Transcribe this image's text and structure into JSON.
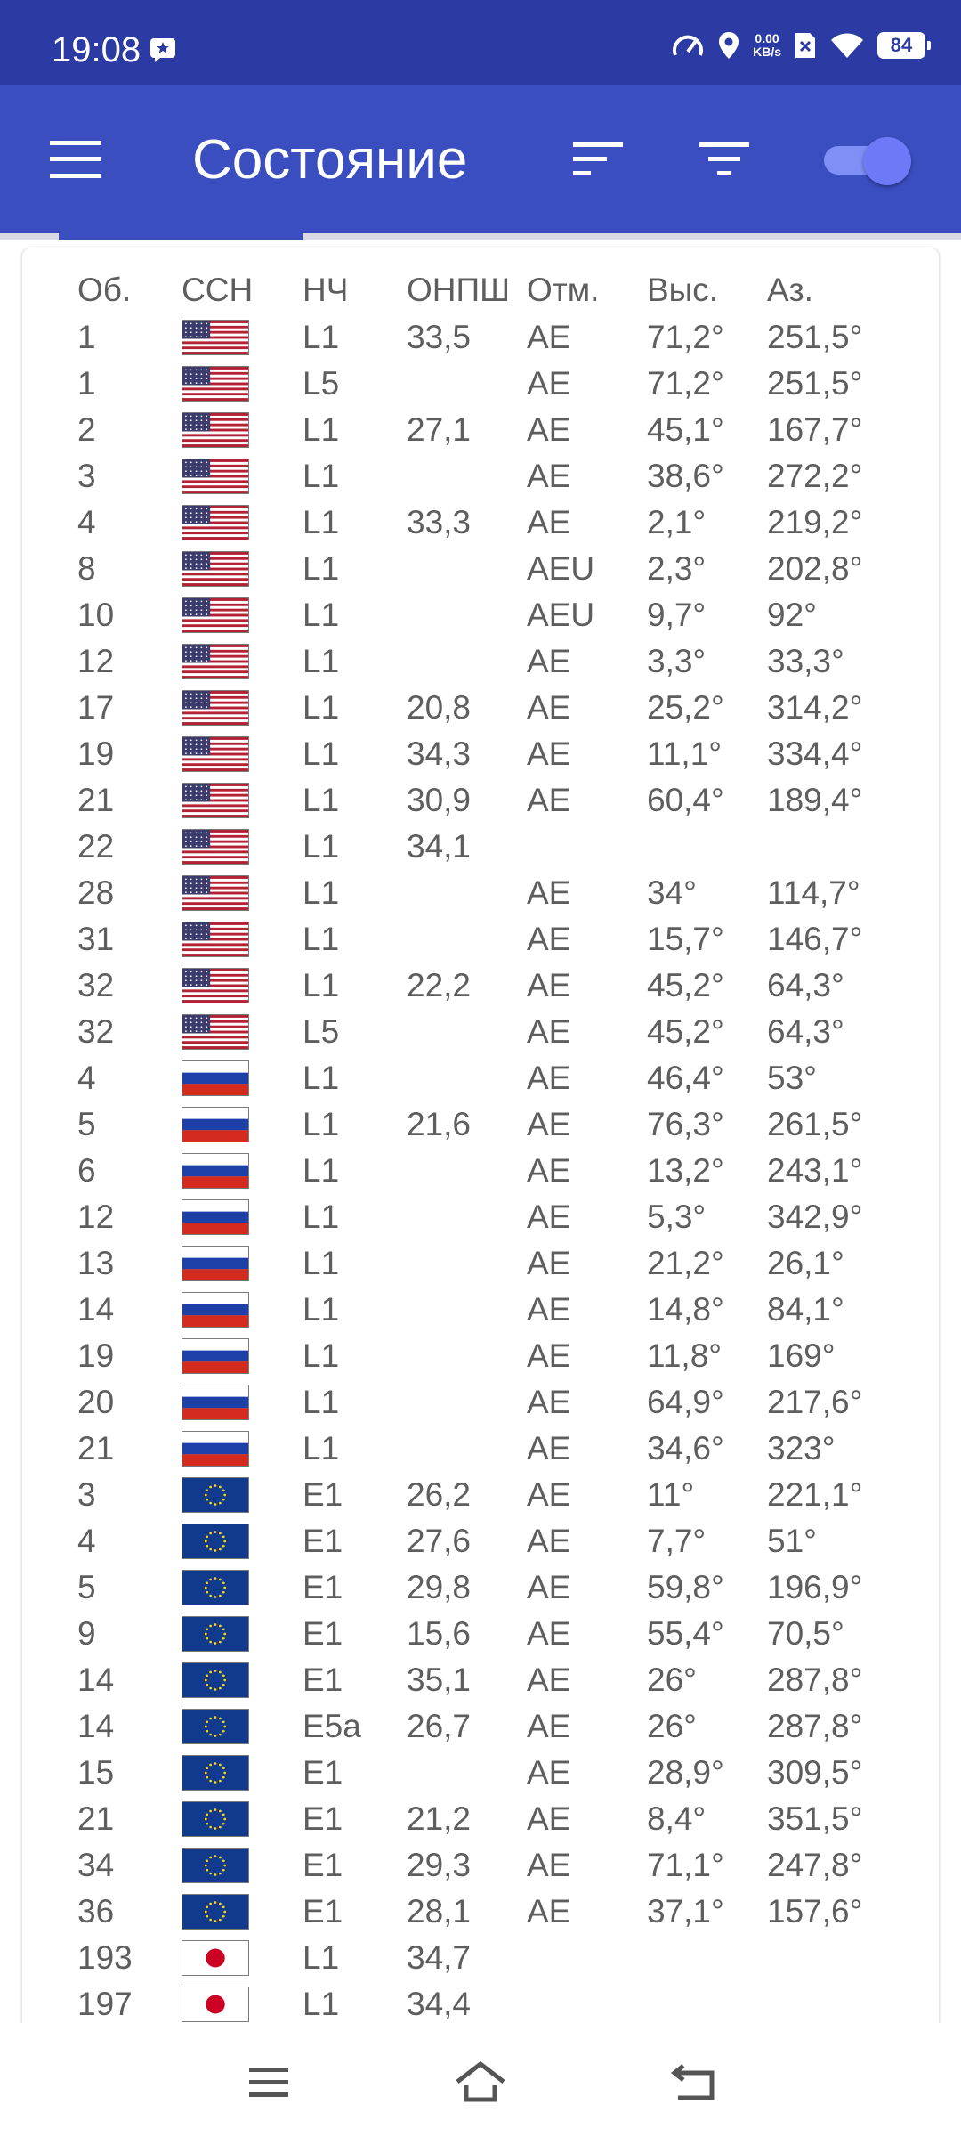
{
  "status_bar": {
    "time": "19:08",
    "net_speed_value": "0.00",
    "net_speed_unit": "KB/s",
    "battery": "84"
  },
  "app_bar": {
    "title": "Состояние",
    "color": "#3a4ec0",
    "toggle_on": true
  },
  "table": {
    "headers": [
      "Об.",
      "ССН",
      "НЧ",
      "ОНПШ",
      "Отм.",
      "Выс.",
      "Аз."
    ],
    "rows": [
      {
        "id": "1",
        "flag": "us",
        "band": "L1",
        "cn0": "33,5",
        "flags": "AE",
        "elev": "71,2°",
        "az": "251,5°"
      },
      {
        "id": "1",
        "flag": "us",
        "band": "L5",
        "cn0": "",
        "flags": "AE",
        "elev": "71,2°",
        "az": "251,5°"
      },
      {
        "id": "2",
        "flag": "us",
        "band": "L1",
        "cn0": "27,1",
        "flags": "AE",
        "elev": "45,1°",
        "az": "167,7°"
      },
      {
        "id": "3",
        "flag": "us",
        "band": "L1",
        "cn0": "",
        "flags": "AE",
        "elev": "38,6°",
        "az": "272,2°"
      },
      {
        "id": "4",
        "flag": "us",
        "band": "L1",
        "cn0": "33,3",
        "flags": "AE",
        "elev": "2,1°",
        "az": "219,2°"
      },
      {
        "id": "8",
        "flag": "us",
        "band": "L1",
        "cn0": "",
        "flags": "AEU",
        "elev": "2,3°",
        "az": "202,8°"
      },
      {
        "id": "10",
        "flag": "us",
        "band": "L1",
        "cn0": "",
        "flags": "AEU",
        "elev": "9,7°",
        "az": "92°"
      },
      {
        "id": "12",
        "flag": "us",
        "band": "L1",
        "cn0": "",
        "flags": "AE",
        "elev": "3,3°",
        "az": "33,3°"
      },
      {
        "id": "17",
        "flag": "us",
        "band": "L1",
        "cn0": "20,8",
        "flags": "AE",
        "elev": "25,2°",
        "az": "314,2°"
      },
      {
        "id": "19",
        "flag": "us",
        "band": "L1",
        "cn0": "34,3",
        "flags": "AE",
        "elev": "11,1°",
        "az": "334,4°"
      },
      {
        "id": "21",
        "flag": "us",
        "band": "L1",
        "cn0": "30,9",
        "flags": "AE",
        "elev": "60,4°",
        "az": "189,4°"
      },
      {
        "id": "22",
        "flag": "us",
        "band": "L1",
        "cn0": "34,1",
        "flags": "",
        "elev": "",
        "az": ""
      },
      {
        "id": "28",
        "flag": "us",
        "band": "L1",
        "cn0": "",
        "flags": "AE",
        "elev": "34°",
        "az": "114,7°"
      },
      {
        "id": "31",
        "flag": "us",
        "band": "L1",
        "cn0": "",
        "flags": "AE",
        "elev": "15,7°",
        "az": "146,7°"
      },
      {
        "id": "32",
        "flag": "us",
        "band": "L1",
        "cn0": "22,2",
        "flags": "AE",
        "elev": "45,2°",
        "az": "64,3°"
      },
      {
        "id": "32",
        "flag": "us",
        "band": "L5",
        "cn0": "",
        "flags": "AE",
        "elev": "45,2°",
        "az": "64,3°"
      },
      {
        "id": "4",
        "flag": "ru",
        "band": "L1",
        "cn0": "",
        "flags": "AE",
        "elev": "46,4°",
        "az": "53°"
      },
      {
        "id": "5",
        "flag": "ru",
        "band": "L1",
        "cn0": "21,6",
        "flags": "AE",
        "elev": "76,3°",
        "az": "261,5°"
      },
      {
        "id": "6",
        "flag": "ru",
        "band": "L1",
        "cn0": "",
        "flags": "AE",
        "elev": "13,2°",
        "az": "243,1°"
      },
      {
        "id": "12",
        "flag": "ru",
        "band": "L1",
        "cn0": "",
        "flags": "AE",
        "elev": "5,3°",
        "az": "342,9°"
      },
      {
        "id": "13",
        "flag": "ru",
        "band": "L1",
        "cn0": "",
        "flags": "AE",
        "elev": "21,2°",
        "az": "26,1°"
      },
      {
        "id": "14",
        "flag": "ru",
        "band": "L1",
        "cn0": "",
        "flags": "AE",
        "elev": "14,8°",
        "az": "84,1°"
      },
      {
        "id": "19",
        "flag": "ru",
        "band": "L1",
        "cn0": "",
        "flags": "AE",
        "elev": "11,8°",
        "az": "169°"
      },
      {
        "id": "20",
        "flag": "ru",
        "band": "L1",
        "cn0": "",
        "flags": "AE",
        "elev": "64,9°",
        "az": "217,6°"
      },
      {
        "id": "21",
        "flag": "ru",
        "band": "L1",
        "cn0": "",
        "flags": "AE",
        "elev": "34,6°",
        "az": "323°"
      },
      {
        "id": "3",
        "flag": "eu",
        "band": "E1",
        "cn0": "26,2",
        "flags": "AE",
        "elev": "11°",
        "az": "221,1°"
      },
      {
        "id": "4",
        "flag": "eu",
        "band": "E1",
        "cn0": "27,6",
        "flags": "AE",
        "elev": "7,7°",
        "az": "51°"
      },
      {
        "id": "5",
        "flag": "eu",
        "band": "E1",
        "cn0": "29,8",
        "flags": "AE",
        "elev": "59,8°",
        "az": "196,9°"
      },
      {
        "id": "9",
        "flag": "eu",
        "band": "E1",
        "cn0": "15,6",
        "flags": "AE",
        "elev": "55,4°",
        "az": "70,5°"
      },
      {
        "id": "14",
        "flag": "eu",
        "band": "E1",
        "cn0": "35,1",
        "flags": "AE",
        "elev": "26°",
        "az": "287,8°"
      },
      {
        "id": "14",
        "flag": "eu",
        "band": "E5a",
        "cn0": "26,7",
        "flags": "AE",
        "elev": "26°",
        "az": "287,8°"
      },
      {
        "id": "15",
        "flag": "eu",
        "band": "E1",
        "cn0": "",
        "flags": "AE",
        "elev": "28,9°",
        "az": "309,5°"
      },
      {
        "id": "21",
        "flag": "eu",
        "band": "E1",
        "cn0": "21,2",
        "flags": "AE",
        "elev": "8,4°",
        "az": "351,5°"
      },
      {
        "id": "34",
        "flag": "eu",
        "band": "E1",
        "cn0": "29,3",
        "flags": "AE",
        "elev": "71,1°",
        "az": "247,8°"
      },
      {
        "id": "36",
        "flag": "eu",
        "band": "E1",
        "cn0": "28,1",
        "flags": "AE",
        "elev": "37,1°",
        "az": "157,6°"
      },
      {
        "id": "193",
        "flag": "jp",
        "band": "L1",
        "cn0": "34,7",
        "flags": "",
        "elev": "",
        "az": ""
      },
      {
        "id": "197",
        "flag": "jp",
        "band": "L1",
        "cn0": "34,4",
        "flags": "",
        "elev": "",
        "az": ""
      }
    ]
  }
}
